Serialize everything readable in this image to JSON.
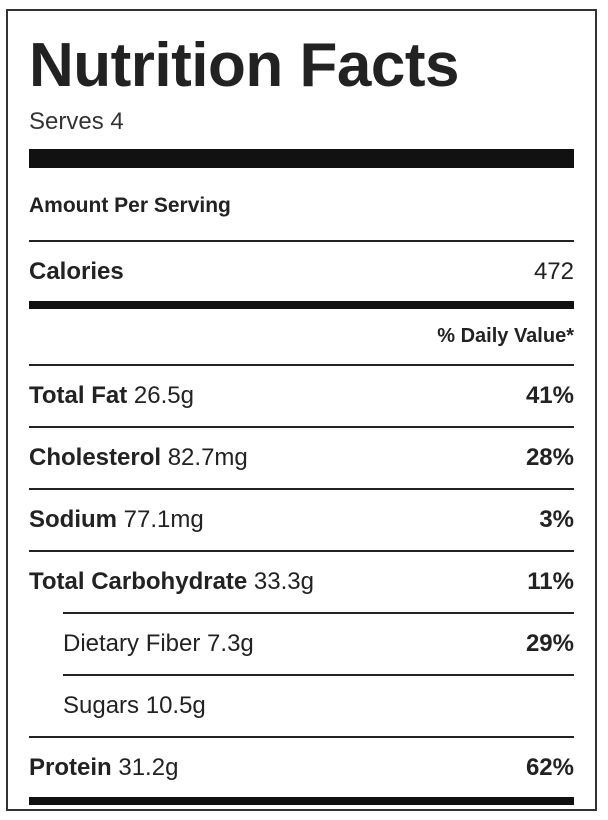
{
  "title": "Nutrition Facts",
  "serves": "Serves 4",
  "amount_per_serving": "Amount Per Serving",
  "calories": {
    "label": "Calories",
    "value": "472"
  },
  "daily_value_header": "% Daily Value*",
  "nutrients": [
    {
      "name": "Total Fat",
      "amount": "26.5g",
      "dv": "41%"
    },
    {
      "name": "Cholesterol",
      "amount": "82.7mg",
      "dv": "28%"
    },
    {
      "name": "Sodium",
      "amount": "77.1mg",
      "dv": "3%"
    },
    {
      "name": "Total Carbohydrate",
      "amount": "33.3g",
      "dv": "11%"
    },
    {
      "name": "Dietary Fiber",
      "amount": "7.3g",
      "dv": "29%"
    },
    {
      "name": "Sugars",
      "amount": "10.5g",
      "dv": ""
    },
    {
      "name": "Protein",
      "amount": "31.2g",
      "dv": "62%"
    }
  ]
}
